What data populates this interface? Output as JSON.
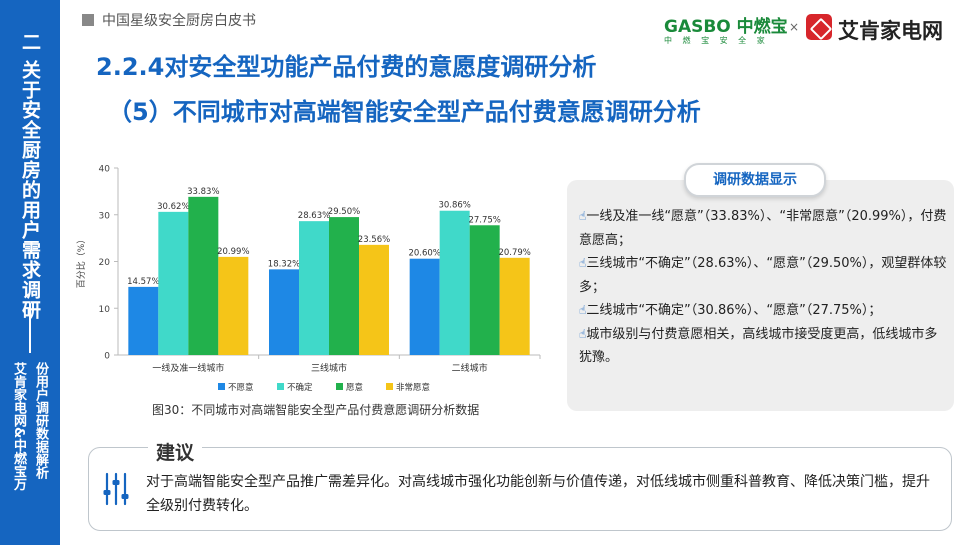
{
  "sidebar": {
    "title": "二 关于安全厨房的用户需求调研",
    "subtitle_col1": "艾肯家电网&中燃宝万",
    "subtitle_col2": "份用户调研数据解析"
  },
  "header": {
    "doc_title": "中国星级安全厨房白皮书",
    "logo1_main": "GASBO 中燃宝",
    "logo1_sub": "中 燃 宝 安 全 家",
    "logo_separator": "×",
    "logo2_text": "艾肯家电网"
  },
  "headings": {
    "h1": "2.2.4对安全型功能产品付费的意愿度调研分析",
    "h2": "（5）不同城市对高端智能安全型产品付费意愿调研分析"
  },
  "chart_data": {
    "type": "bar",
    "categories": [
      "一线及准一线城市",
      "三线城市",
      "二线城市"
    ],
    "series": [
      {
        "name": "不愿意",
        "values": [
          14.57,
          18.32,
          20.6
        ],
        "color": "#1e88e5",
        "labels": [
          "14.57%",
          "18.32%",
          "20.60%"
        ]
      },
      {
        "name": "不确定",
        "values": [
          30.62,
          28.63,
          30.86
        ],
        "color": "#40d9c9",
        "labels": [
          "30.62%",
          "28.63%",
          "30.86%"
        ]
      },
      {
        "name": "愿意",
        "values": [
          33.83,
          29.5,
          27.75
        ],
        "color": "#22b14c",
        "labels": [
          "33.83%",
          "29.50%",
          "27.75%"
        ]
      },
      {
        "name": "非常愿意",
        "values": [
          20.99,
          23.56,
          20.79
        ],
        "color": "#f5c518",
        "labels": [
          "20.99%",
          "23.56%",
          "20.79%"
        ]
      }
    ],
    "ylabel": "百分比（%）",
    "ylim": [
      0,
      40
    ],
    "yticks": [
      "0",
      "10",
      "20",
      "30",
      "40"
    ],
    "grid": false,
    "legend": "bottom"
  },
  "caption": "图30：不同城市对高端智能安全型产品付费意愿调研分析数据",
  "panel": {
    "tag": "调研数据显示",
    "hand_icon": "☝",
    "findings": [
      "一线及准一线“愿意”（33.83%）、“非常愿意”（20.99%），付费意愿高；",
      "三线城市“不确定”（28.63%）、“愿意”（29.50%），观望群体较多；",
      "二线城市“不确定”（30.86%）、“愿意”（27.75%）；",
      "城市级别与付费意愿相关，高线城市接受度更高，低线城市多犹豫。"
    ]
  },
  "advice": {
    "title": "建议",
    "icon": "sliders-icon",
    "text": "对于高端智能安全型产品推广需差异化。对高线城市强化功能创新与价值传递，对低线城市侧重科普教育、降低决策门槛，提升全级别付费转化。"
  }
}
